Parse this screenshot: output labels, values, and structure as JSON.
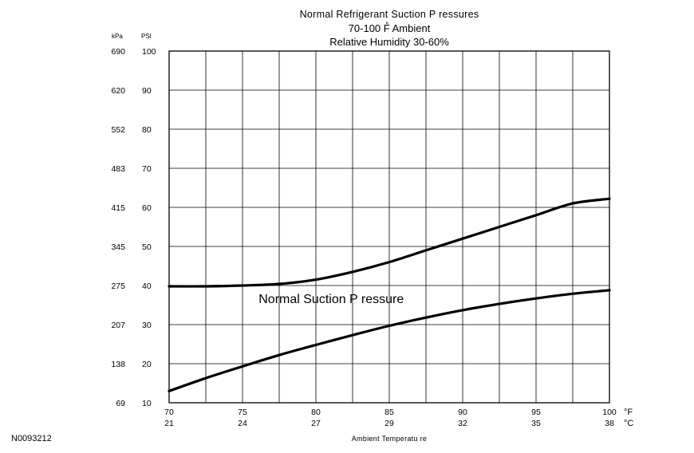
{
  "chart_data": {
    "type": "line",
    "title_lines": [
      "Normal Refrigerant Suction P ressures",
      "70-100 F̊ Ambient",
      "Relative Humidity 30-60%"
    ],
    "xlabel": "Ambient Temperatu re",
    "x_unit_primary": "°F",
    "x_unit_secondary": "°C",
    "x_ticks": [
      {
        "f": 70,
        "c": "21"
      },
      {
        "f": 75,
        "c": "24"
      },
      {
        "f": 80,
        "c": "27"
      },
      {
        "f": 85,
        "c": "29"
      },
      {
        "f": 90,
        "c": "32"
      },
      {
        "f": 95,
        "c": "35"
      },
      {
        "f": 100,
        "c": "38"
      }
    ],
    "x_minor_step": 2.5,
    "xlim": [
      70,
      100
    ],
    "ylim": [
      10,
      100
    ],
    "y_unit_primary": "PSI",
    "y_unit_secondary": "kPa",
    "y_ticks": [
      {
        "psi": 10,
        "kpa": "69"
      },
      {
        "psi": 20,
        "kpa": "138"
      },
      {
        "psi": 30,
        "kpa": "207"
      },
      {
        "psi": 40,
        "kpa": "275"
      },
      {
        "psi": 50,
        "kpa": "345"
      },
      {
        "psi": 60,
        "kpa": "415"
      },
      {
        "psi": 70,
        "kpa": "483"
      },
      {
        "psi": 80,
        "kpa": "552"
      },
      {
        "psi": 90,
        "kpa": "620"
      },
      {
        "psi": 100,
        "kpa": "690"
      }
    ],
    "grid": true,
    "annotation": {
      "text": "Normal Suction P ressure",
      "x": 76.1,
      "y": 35.5
    },
    "series": [
      {
        "role": "upper-bound",
        "x": [
          70,
          72.5,
          75,
          77.5,
          80,
          82.5,
          85,
          87.5,
          90,
          92.5,
          95,
          97.5,
          100
        ],
        "y": [
          39.8,
          39.8,
          40.0,
          40.4,
          41.5,
          43.5,
          46.0,
          49.0,
          52.0,
          55.0,
          58.0,
          61.0,
          62.2
        ]
      },
      {
        "role": "lower-bound",
        "x": [
          70,
          72.5,
          75,
          77.5,
          80,
          82.5,
          85,
          87.5,
          90,
          92.5,
          95,
          97.5,
          100
        ],
        "y": [
          13.0,
          16.3,
          19.3,
          22.2,
          24.8,
          27.3,
          29.7,
          31.8,
          33.7,
          35.3,
          36.7,
          37.9,
          38.8
        ]
      }
    ],
    "line_color": "#000000",
    "grid_color": "#000000"
  },
  "figure_id": "N0093212"
}
